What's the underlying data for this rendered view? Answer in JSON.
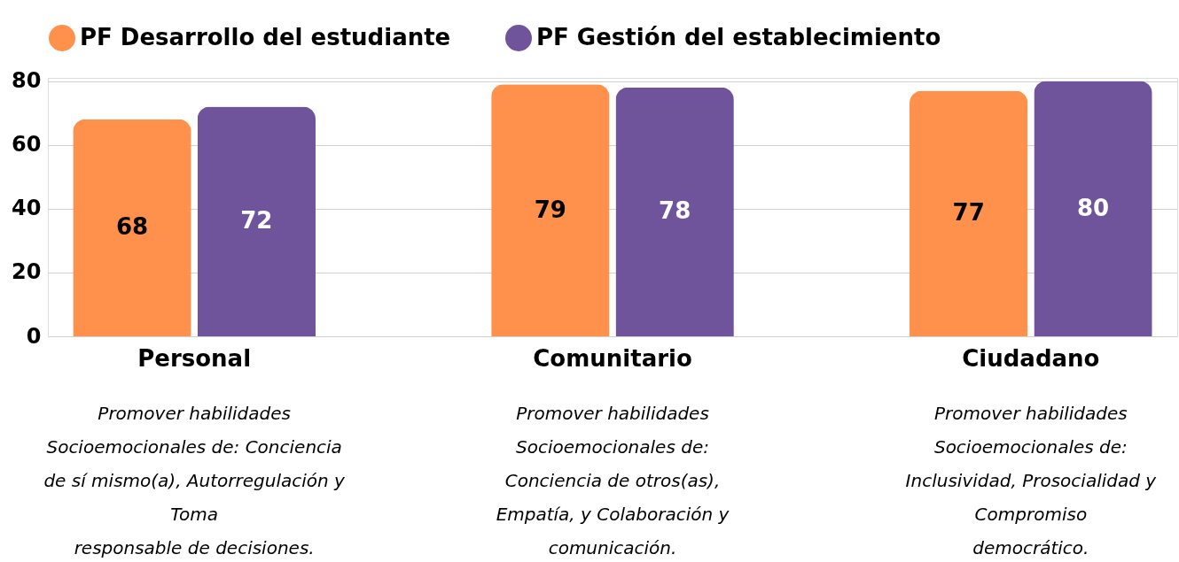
{
  "chart_data": {
    "type": "bar",
    "categories": [
      "Personal",
      "Comunitario",
      "Ciudadano"
    ],
    "series": [
      {
        "name": "PF Desarrollo del estudiante",
        "color": "#ff914d",
        "values": [
          68,
          79,
          77
        ]
      },
      {
        "name": "PF Gestión del establecimiento",
        "color": "#6f539b",
        "values": [
          72,
          78,
          80
        ]
      }
    ],
    "ylim": [
      0,
      81
    ],
    "yticks": [
      0,
      20,
      40,
      60,
      80
    ],
    "grid": "y",
    "legend": "top",
    "data_labels": true,
    "annotations": [
      "Promover habilidades\nSocioemocionales de: Conciencia\nde sí mismo(a), Autorregulación y\nToma\nresponsable de decisiones.",
      "Promover habilidades\nSocioemocionales de:\nConciencia de otros(as),\nEmpatía, y Colaboración y\ncomunicación.",
      "Promover habilidades\nSocioemocionales de:\nInclusividad, Prosocialidad y\nCompromiso\ndemocrático."
    ]
  }
}
